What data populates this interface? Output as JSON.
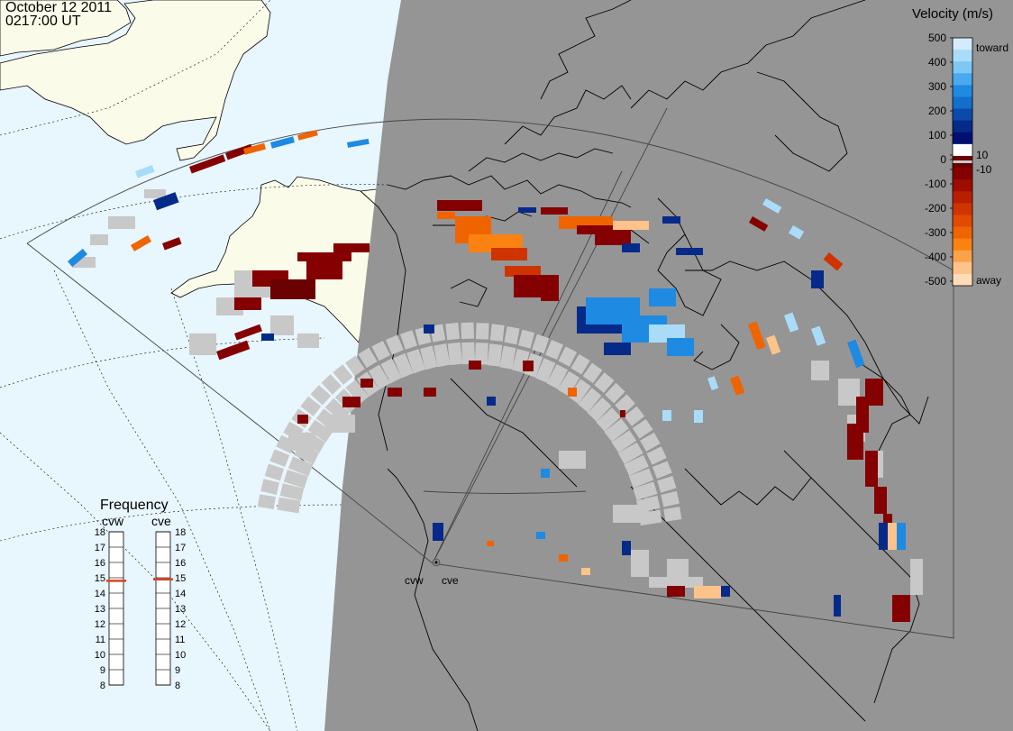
{
  "header": {
    "date": "October 12 2011",
    "time": "0217:00 UT"
  },
  "colors": {
    "ocean": "#e8f6fe",
    "land_day": "#fbfbea",
    "night": "#959595",
    "ground_scatter": "#c8c8c8",
    "coast": "#000000"
  },
  "legend": {
    "title": "Velocity (m/s)",
    "ticks": [
      "500",
      "400",
      "300",
      "200",
      "100",
      "10",
      "0",
      "-10",
      "-100",
      "-200",
      "-300",
      "-400",
      "-500"
    ],
    "toward_label": "toward",
    "away_label": "away",
    "colors": [
      "#d2ecfd",
      "#aadcfa",
      "#7ec8f6",
      "#4aa9ef",
      "#1e8ae2",
      "#126fcb",
      "#0c4aa9",
      "#062a8a",
      "#001070",
      "#ffffff",
      "#6b0000",
      "#850000",
      "#9f0c00",
      "#b81f00",
      "#cf3400",
      "#e24a00",
      "#f06400",
      "#f98211",
      "#fca24a",
      "#fdc38a",
      "#fddcb8"
    ]
  },
  "frequency": {
    "title": "Frequency",
    "radars": [
      {
        "name": "cvw",
        "value": 14.8
      },
      {
        "name": "cve",
        "value": 14.9
      }
    ],
    "ticks": [
      "18",
      "17",
      "16",
      "15",
      "14",
      "13",
      "12",
      "11",
      "10",
      "9",
      "8"
    ]
  },
  "radar_sites": [
    {
      "name": "cvw"
    },
    {
      "name": "cve"
    }
  ]
}
